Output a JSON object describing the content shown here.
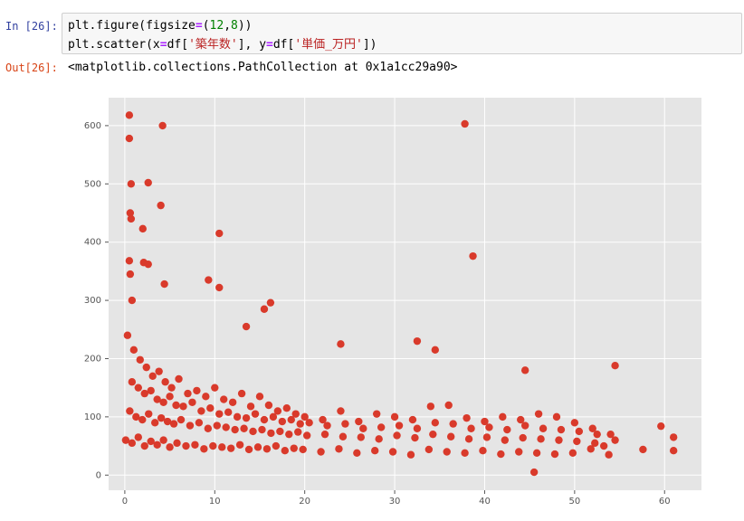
{
  "notebook": {
    "in_prompt": "In [26]:",
    "out_prompt": "Out[26]:",
    "code": [
      [
        "plt.figure(figsize",
        "=",
        "(",
        "12",
        ",",
        "8",
        "))"
      ],
      [
        "plt.scatter(x",
        "=",
        "df[",
        "'築年数'",
        "], y",
        "=",
        "df[",
        "'単価_万円'",
        "])"
      ]
    ],
    "output": "<matplotlib.collections.PathCollection at 0x1a1cc29a90>"
  },
  "chart_data": {
    "type": "scatter",
    "color": "#d93a2b",
    "grid": true,
    "xlim": [
      -1.8,
      64.1
    ],
    "ylim": [
      -26,
      648
    ],
    "xticks": [
      0,
      10,
      20,
      30,
      40,
      50,
      60
    ],
    "yticks": [
      0,
      100,
      200,
      300,
      400,
      500,
      600
    ],
    "x": [
      0.3,
      1,
      1.7,
      2.4,
      3.1,
      3.8,
      4.5,
      5.2,
      6,
      7,
      8,
      9,
      10,
      11,
      12,
      13,
      14,
      15,
      16,
      17,
      18,
      19,
      20,
      22,
      24,
      26,
      28,
      30,
      32,
      34,
      36,
      38,
      40,
      42,
      44,
      46,
      48,
      50,
      52,
      54,
      0.8,
      1.5,
      2.2,
      2.9,
      3.6,
      4.3,
      5,
      5.7,
      6.5,
      7.5,
      8.5,
      9.5,
      10.5,
      11.5,
      12.5,
      13.5,
      14.5,
      15.5,
      16.5,
      17.5,
      18.5,
      19.5,
      20.5,
      22.5,
      24.5,
      26.5,
      28.5,
      30.5,
      32.5,
      34.5,
      36.5,
      38.5,
      40.5,
      42.5,
      44.5,
      46.5,
      48.5,
      50.5,
      52.5,
      54.5,
      0.55,
      1.25,
      1.95,
      2.65,
      3.35,
      4.05,
      4.75,
      5.45,
      6.25,
      7.25,
      8.25,
      9.25,
      10.25,
      11.25,
      12.25,
      13.25,
      14.25,
      15.25,
      16.25,
      17.25,
      18.25,
      19.25,
      20.25,
      22.25,
      24.25,
      26.25,
      28.25,
      30.25,
      32.25,
      34.25,
      36.25,
      38.25,
      40.25,
      42.25,
      44.25,
      46.25,
      48.25,
      50.25,
      52.25,
      53.25,
      0.1,
      0.8,
      1.5,
      2.2,
      2.9,
      3.6,
      4.3,
      5,
      5.8,
      6.8,
      7.8,
      8.8,
      9.8,
      10.8,
      11.8,
      12.8,
      13.8,
      14.8,
      15.8,
      16.8,
      17.8,
      18.8,
      19.8,
      21.8,
      23.8,
      25.8,
      27.8,
      29.8,
      31.8,
      33.8,
      35.8,
      37.8,
      39.8,
      41.8,
      43.8,
      45.8,
      47.8,
      49.8,
      51.8,
      53.8,
      0.5,
      0.5,
      4.2,
      37.8,
      0.7,
      2.6,
      4,
      0.6,
      0.7,
      2,
      10.5,
      38.7,
      2.1,
      2.6,
      0.5,
      0.6,
      4.4,
      9.3,
      10.5,
      16.2,
      0.8,
      54.5,
      59.6,
      61,
      61,
      57.6,
      45.5,
      24,
      32.5,
      34.5,
      44.5,
      15.5,
      13.5
    ],
    "y": [
      240,
      215,
      198,
      185,
      170,
      178,
      160,
      150,
      165,
      140,
      145,
      135,
      150,
      130,
      125,
      140,
      118,
      135,
      120,
      110,
      115,
      105,
      100,
      95,
      110,
      92,
      105,
      100,
      95,
      118,
      120,
      98,
      92,
      100,
      95,
      105,
      100,
      90,
      80,
      70,
      160,
      150,
      140,
      145,
      130,
      125,
      135,
      120,
      118,
      125,
      110,
      115,
      105,
      108,
      100,
      98,
      105,
      95,
      100,
      92,
      95,
      88,
      90,
      85,
      88,
      80,
      82,
      85,
      80,
      90,
      88,
      80,
      82,
      78,
      85,
      80,
      78,
      75,
      70,
      60,
      110,
      100,
      95,
      105,
      90,
      98,
      92,
      88,
      95,
      85,
      90,
      80,
      85,
      82,
      78,
      80,
      75,
      78,
      72,
      75,
      70,
      74,
      68,
      70,
      66,
      65,
      62,
      68,
      64,
      70,
      66,
      62,
      65,
      60,
      64,
      62,
      60,
      58,
      55,
      50,
      60,
      55,
      65,
      50,
      58,
      52,
      60,
      48,
      55,
      50,
      52,
      45,
      50,
      48,
      46,
      52,
      44,
      48,
      45,
      50,
      42,
      46,
      44,
      40,
      45,
      38,
      42,
      40,
      35,
      44,
      40,
      38,
      42,
      36,
      40,
      38,
      36,
      38,
      45,
      35,
      618,
      578,
      600,
      603,
      500,
      502,
      463,
      450,
      440,
      423,
      415,
      376,
      365,
      362,
      368,
      345,
      328,
      335,
      322,
      296,
      300,
      188,
      84,
      65,
      42,
      44,
      5,
      225,
      230,
      215,
      180,
      285,
      255
    ]
  }
}
